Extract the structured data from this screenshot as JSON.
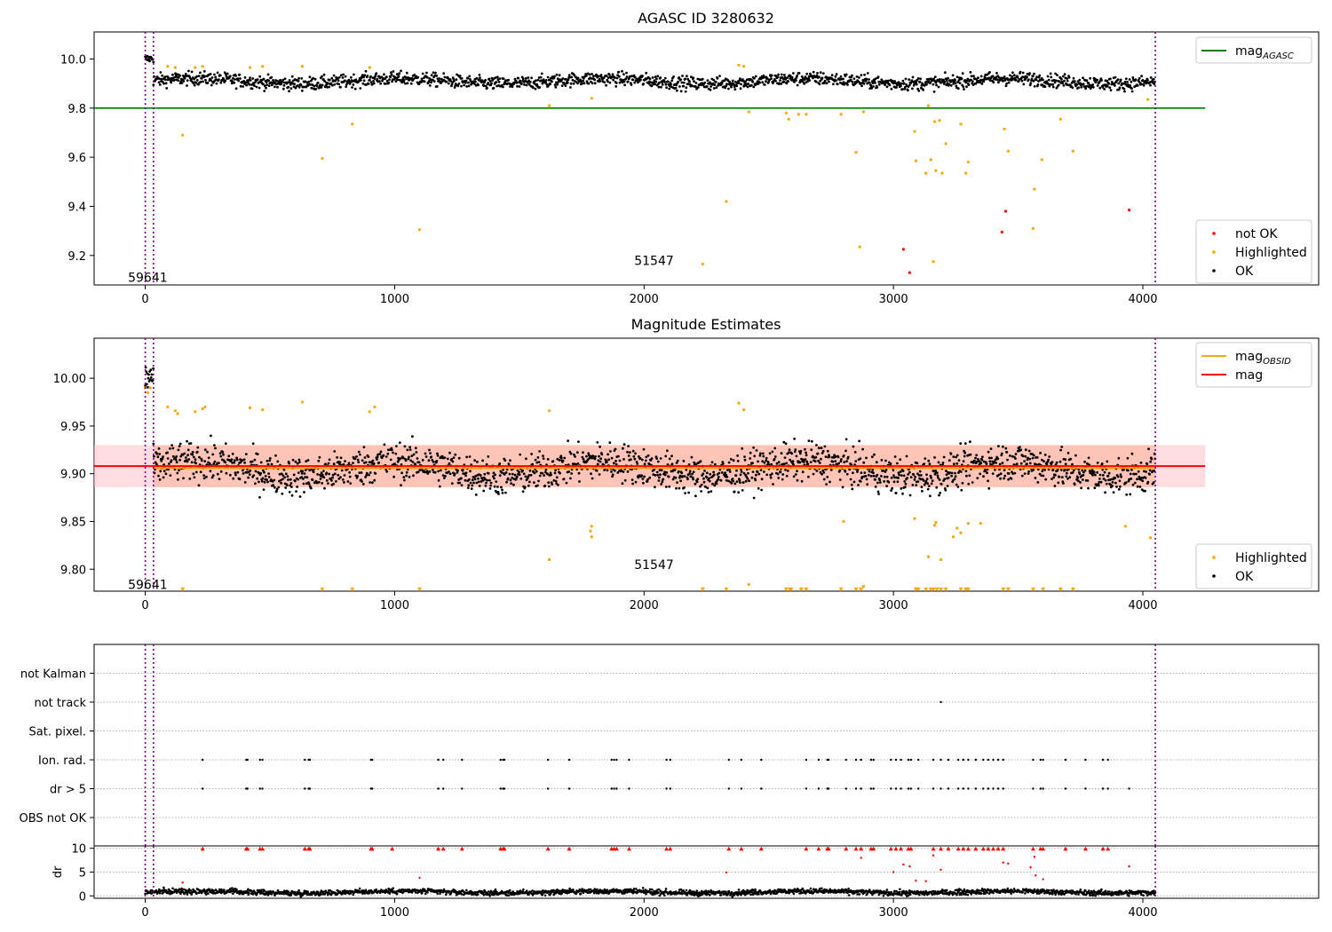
{
  "chart_data": [
    {
      "type": "scatter",
      "title": "AGASC ID 3280632",
      "xlim": [
        -205,
        4705
      ],
      "ylim": [
        9.08,
        10.11
      ],
      "xticks": [
        0,
        1000,
        2000,
        3000,
        4000
      ],
      "yticks": [
        9.2,
        9.4,
        9.6,
        9.8,
        10.0
      ],
      "ytick_labels": [
        "9.2",
        "9.4",
        "9.6",
        "9.8",
        "10.0"
      ],
      "vlines": [
        0,
        33,
        4050
      ],
      "hline": {
        "name": "mag",
        "subscript": "AGASC",
        "y": 9.8,
        "x_range": [
          -205,
          4250
        ],
        "color": "#008000"
      },
      "annotations": [
        {
          "text": "59641",
          "x": 10,
          "y": 9.11
        },
        {
          "text": "51547",
          "x": 2040,
          "y": 9.18
        }
      ],
      "legends": [
        {
          "position": "upper-right",
          "entries": [
            {
              "kind": "line",
              "color": "#008000",
              "label": "mag",
              "subscript": "AGASC"
            }
          ]
        },
        {
          "position": "lower-right",
          "entries": [
            {
              "kind": "dot",
              "color": "#ff0000",
              "label": "not OK"
            },
            {
              "kind": "dot",
              "color": "#ffa500",
              "label": "Highlighted"
            },
            {
              "kind": "dot",
              "color": "#000000",
              "label": "OK"
            }
          ]
        }
      ],
      "series": [
        {
          "name": "not OK",
          "color": "#ff0000",
          "points": [
            [
              3040,
              9.225
            ],
            [
              3065,
              9.13
            ],
            [
              3435,
              9.295
            ],
            [
              3450,
              9.38
            ],
            [
              3945,
              9.385
            ]
          ]
        },
        {
          "name": "Highlighted",
          "color": "#ffa500",
          "points": [
            [
              150,
              9.69
            ],
            [
              710,
              9.595
            ],
            [
              830,
              9.735
            ],
            [
              1100,
              9.305
            ],
            [
              1620,
              9.81
            ],
            [
              1790,
              9.84
            ],
            [
              2235,
              9.165
            ],
            [
              2330,
              9.42
            ],
            [
              2420,
              9.785
            ],
            [
              2570,
              9.78
            ],
            [
              2580,
              9.755
            ],
            [
              2620,
              9.775
            ],
            [
              2650,
              9.775
            ],
            [
              2790,
              9.775
            ],
            [
              2850,
              9.62
            ],
            [
              2865,
              9.235
            ],
            [
              2880,
              9.785
            ],
            [
              3085,
              9.705
            ],
            [
              3090,
              9.585
            ],
            [
              3130,
              9.535
            ],
            [
              3140,
              9.81
            ],
            [
              3150,
              9.59
            ],
            [
              3160,
              9.175
            ],
            [
              3165,
              9.745
            ],
            [
              3170,
              9.545
            ],
            [
              3185,
              9.75
            ],
            [
              3195,
              9.535
            ],
            [
              3210,
              9.655
            ],
            [
              3270,
              9.735
            ],
            [
              3290,
              9.535
            ],
            [
              3300,
              9.58
            ],
            [
              3445,
              9.715
            ],
            [
              3460,
              9.625
            ],
            [
              3560,
              9.31
            ],
            [
              3565,
              9.47
            ],
            [
              3595,
              9.59
            ],
            [
              3670,
              9.755
            ],
            [
              3720,
              9.625
            ],
            [
              4020,
              9.835
            ],
            [
              90,
              9.97
            ],
            [
              120,
              9.965
            ],
            [
              200,
              9.965
            ],
            [
              230,
              9.97
            ],
            [
              420,
              9.965
            ],
            [
              470,
              9.97
            ],
            [
              630,
              9.97
            ],
            [
              900,
              9.965
            ],
            [
              2380,
              9.975
            ],
            [
              2400,
              9.97
            ]
          ]
        }
      ],
      "ok_band": {
        "name": "OK",
        "color": "#000000",
        "segments": [
          {
            "x_from": 0,
            "x_to": 33,
            "mean": 10.0,
            "spread": 0.02
          },
          {
            "x_from": 33,
            "x_to": 4050,
            "mean": 9.91,
            "spread": 0.03
          }
        ]
      }
    },
    {
      "type": "scatter",
      "title": "Magnitude Estimates",
      "xlim": [
        -205,
        4705
      ],
      "ylim": [
        9.777,
        10.042
      ],
      "xticks": [
        0,
        1000,
        2000,
        3000,
        4000
      ],
      "yticks": [
        9.8,
        9.85,
        9.9,
        9.95,
        10.0
      ],
      "ytick_labels": [
        "9.80",
        "9.85",
        "9.90",
        "9.95",
        "10.00"
      ],
      "vlines": [
        0,
        33,
        4050
      ],
      "mag_line": {
        "name": "mag",
        "y": 9.908,
        "x_range": [
          -205,
          4250
        ],
        "color": "#ff0000"
      },
      "mag_band": {
        "y_range": [
          9.886,
          9.93
        ],
        "x_range": [
          -205,
          4250
        ],
        "color": "#ffc0cb"
      },
      "mag_obsid": {
        "name": "mag",
        "subscript": "OBSID",
        "y": 9.906,
        "x_range": [
          33,
          4050
        ],
        "color": "#ffa500"
      },
      "mag_obsid_band": {
        "y_range": [
          9.886,
          9.93
        ],
        "x_range": [
          33,
          4050
        ],
        "color": "#ffa07a"
      },
      "annotations": [
        {
          "text": "59641",
          "x": 10,
          "y": 9.784
        },
        {
          "text": "51547",
          "x": 2040,
          "y": 9.805
        }
      ],
      "legends": [
        {
          "position": "upper-right",
          "entries": [
            {
              "kind": "line",
              "color": "#ffa500",
              "label": "mag",
              "subscript": "OBSID"
            },
            {
              "kind": "line",
              "color": "#ff0000",
              "label": "mag"
            }
          ]
        },
        {
          "position": "lower-right",
          "entries": [
            {
              "kind": "dot",
              "color": "#ffa500",
              "label": "Highlighted"
            },
            {
              "kind": "dot",
              "color": "#000000",
              "label": "OK"
            }
          ]
        }
      ],
      "series": [
        {
          "name": "Highlighted",
          "color": "#ffa500",
          "points": [
            [
              1620,
              9.81
            ],
            [
              1790,
              9.845
            ],
            [
              1785,
              9.84
            ],
            [
              1790,
              9.834
            ],
            [
              2420,
              9.784
            ],
            [
              2800,
              9.85
            ],
            [
              2880,
              9.782
            ],
            [
              3085,
              9.853
            ],
            [
              3140,
              9.813
            ],
            [
              3165,
              9.846
            ],
            [
              3170,
              9.849
            ],
            [
              3190,
              9.81
            ],
            [
              3240,
              9.834
            ],
            [
              3255,
              9.843
            ],
            [
              3270,
              9.838
            ],
            [
              3300,
              9.848
            ],
            [
              3350,
              9.848
            ],
            [
              3930,
              9.845
            ],
            [
              4030,
              9.833
            ],
            [
              90,
              9.97
            ],
            [
              120,
              9.966
            ],
            [
              130,
              9.963
            ],
            [
              200,
              9.965
            ],
            [
              230,
              9.968
            ],
            [
              240,
              9.97
            ],
            [
              420,
              9.969
            ],
            [
              470,
              9.967
            ],
            [
              630,
              9.975
            ],
            [
              900,
              9.965
            ],
            [
              920,
              9.97
            ],
            [
              1620,
              9.966
            ],
            [
              2380,
              9.974
            ],
            [
              2400,
              9.967
            ],
            [
              0,
              9.99
            ],
            [
              10,
              9.985
            ],
            [
              20,
              9.99
            ]
          ]
        },
        {
          "name": "Highlighted clipped",
          "color": "#ffa500",
          "marker": "triangle-down",
          "y_at": 9.779,
          "x": [
            150,
            710,
            830,
            1100,
            2235,
            2330,
            2570,
            2585,
            2590,
            2630,
            2650,
            2790,
            2850,
            2870,
            3090,
            3100,
            3130,
            3150,
            3160,
            3175,
            3190,
            3210,
            3270,
            3290,
            3300,
            3440,
            3460,
            3560,
            3600,
            3670,
            3720
          ]
        }
      ],
      "ok_band": {
        "name": "OK",
        "color": "#000000",
        "segments": [
          {
            "x_from": 0,
            "x_to": 33,
            "mean": 10.0,
            "spread": 0.02
          },
          {
            "x_from": 33,
            "x_to": 4050,
            "mean": 9.905,
            "spread": 0.022
          }
        ]
      }
    },
    {
      "type": "scatter",
      "title": "",
      "xlim": [
        -205,
        4705
      ],
      "categories": [
        "OBS not OK",
        "dr > 5",
        "Ion. rad.",
        "Sat. pixel.",
        "not track",
        "not Kalman"
      ],
      "vlines": [
        0,
        33,
        4050
      ],
      "flag_x": {
        "dr > 5": [
          230,
          405,
          410,
          460,
          470,
          640,
          655,
          660,
          905,
          910,
          1175,
          1195,
          1270,
          1425,
          1435,
          1440,
          1615,
          1700,
          1870,
          1880,
          1890,
          1940,
          2090,
          2105,
          2340,
          2390,
          2470,
          2650,
          2700,
          2735,
          2740,
          2810,
          2850,
          2870,
          2910,
          2920,
          2990,
          3010,
          3030,
          3060,
          3070,
          3100,
          3160,
          3190,
          3220,
          3260,
          3280,
          3300,
          3330,
          3360,
          3380,
          3400,
          3420,
          3440,
          3560,
          3590,
          3600,
          3690,
          3770,
          3840,
          3860,
          3945
        ],
        "Ion. rad.": [
          230,
          405,
          410,
          460,
          470,
          640,
          655,
          660,
          905,
          910,
          1175,
          1195,
          1270,
          1425,
          1435,
          1440,
          1615,
          1700,
          1870,
          1880,
          1890,
          1940,
          2090,
          2105,
          2340,
          2390,
          2470,
          2650,
          2700,
          2735,
          2740,
          2810,
          2850,
          2870,
          2910,
          2920,
          2990,
          3010,
          3030,
          3060,
          3070,
          3100,
          3160,
          3190,
          3220,
          3260,
          3280,
          3300,
          3330,
          3360,
          3380,
          3400,
          3420,
          3440,
          3560,
          3590,
          3600,
          3690,
          3770,
          3840,
          3860
        ],
        "not track": [
          3190
        ]
      }
    },
    {
      "type": "scatter",
      "title": "",
      "ylabel": "dr",
      "xlim": [
        -205,
        4705
      ],
      "ylim": [
        -0.5,
        10.5
      ],
      "xticks": [
        0,
        1000,
        2000,
        3000,
        4000
      ],
      "yticks": [
        0,
        5,
        10
      ],
      "vlines": [
        0,
        33,
        4050
      ],
      "ok_band": {
        "name": "OK",
        "color": "#000000",
        "segments": [
          {
            "x_from": 0,
            "x_to": 4050,
            "mean": 0.8,
            "spread": 0.6
          }
        ]
      },
      "series": [
        {
          "name": "dr > 5 clipped",
          "color": "#ff0000",
          "marker": "triangle-up",
          "y_at": 9.9,
          "x": [
            230,
            405,
            410,
            460,
            470,
            640,
            655,
            660,
            905,
            910,
            990,
            1175,
            1195,
            1270,
            1425,
            1435,
            1440,
            1615,
            1700,
            1870,
            1880,
            1890,
            1940,
            2090,
            2105,
            2340,
            2390,
            2470,
            2650,
            2700,
            2735,
            2740,
            2810,
            2850,
            2870,
            2910,
            2920,
            2990,
            3010,
            3030,
            3060,
            3070,
            3160,
            3190,
            3220,
            3260,
            3280,
            3300,
            3330,
            3360,
            3380,
            3400,
            3420,
            3440,
            3560,
            3590,
            3600,
            3690,
            3770,
            3840,
            3860
          ]
        },
        {
          "name": "dr",
          "color": "#ff0000",
          "points": [
            [
              150,
              2.8
            ],
            [
              1100,
              3.8
            ],
            [
              2330,
              4.9
            ],
            [
              3040,
              6.6
            ],
            [
              3065,
              6.2
            ],
            [
              3130,
              3.1
            ],
            [
              3160,
              8.5
            ],
            [
              3190,
              5.5
            ],
            [
              3440,
              7.0
            ],
            [
              3460,
              6.8
            ],
            [
              3550,
              6.0
            ],
            [
              3565,
              8.2
            ],
            [
              3570,
              4.3
            ],
            [
              3600,
              3.5
            ],
            [
              3945,
              6.2
            ],
            [
              3000,
              5.0
            ],
            [
              3090,
              3.2
            ],
            [
              2870,
              8.0
            ]
          ]
        }
      ]
    }
  ]
}
